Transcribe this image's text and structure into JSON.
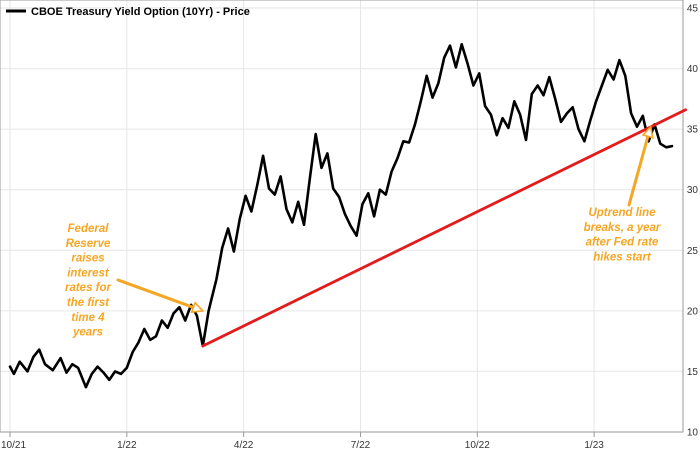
{
  "chart_data": {
    "type": "line",
    "title": "CBOE Treasury Yield Option (10Yr) - Price",
    "legend": {
      "label": "CBOE Treasury Yield Option (10Yr) - Price",
      "placement": "top-left"
    },
    "ylim": [
      10,
      45
    ],
    "yticks": [
      10,
      15,
      20,
      25,
      30,
      35,
      40,
      45
    ],
    "xlim": [
      0,
      17
    ],
    "xticks": [
      {
        "label": "10/21",
        "x": 0
      },
      {
        "label": "1/22",
        "x": 3
      },
      {
        "label": "4/22",
        "x": 6
      },
      {
        "label": "7/22",
        "x": 9
      },
      {
        "label": "10/22",
        "x": 12
      },
      {
        "label": "1/23",
        "x": 15
      }
    ],
    "series": [
      {
        "name": "CBOE Treasury Yield Option (10Yr) - Price",
        "color": "#000000",
        "x": [
          0,
          0.1,
          0.25,
          0.45,
          0.6,
          0.75,
          0.9,
          1.1,
          1.3,
          1.45,
          1.6,
          1.75,
          1.95,
          2.1,
          2.25,
          2.4,
          2.55,
          2.7,
          2.85,
          3.0,
          3.15,
          3.3,
          3.45,
          3.6,
          3.75,
          3.9,
          4.05,
          4.2,
          4.35,
          4.5,
          4.65,
          4.8,
          4.95,
          5.1,
          5.2,
          5.3,
          5.45,
          5.6,
          5.75,
          5.9,
          6.05,
          6.2,
          6.35,
          6.5,
          6.65,
          6.8,
          6.95,
          7.1,
          7.25,
          7.4,
          7.55,
          7.7,
          7.85,
          8.0,
          8.15,
          8.3,
          8.45,
          8.6,
          8.75,
          8.9,
          9.05,
          9.2,
          9.35,
          9.5,
          9.65,
          9.8,
          9.95,
          10.1,
          10.25,
          10.4,
          10.55,
          10.7,
          10.85,
          11.0,
          11.15,
          11.3,
          11.45,
          11.6,
          11.75,
          11.9,
          12.05,
          12.2,
          12.35,
          12.5,
          12.65,
          12.8,
          12.95,
          13.1,
          13.25,
          13.4,
          13.55,
          13.7,
          13.85,
          14.0,
          14.15,
          14.3,
          14.45,
          14.6,
          14.75,
          14.9,
          15.05,
          15.2,
          15.35,
          15.5,
          15.65,
          15.8,
          15.95,
          16.1,
          16.25,
          16.4,
          16.55,
          16.7,
          16.85,
          17.0
        ],
        "values": [
          15.4,
          14.8,
          15.8,
          15.0,
          16.2,
          16.8,
          15.6,
          15.1,
          16.1,
          14.9,
          15.6,
          15.3,
          13.7,
          14.8,
          15.4,
          14.9,
          14.3,
          15.0,
          14.8,
          15.3,
          16.6,
          17.4,
          18.5,
          17.6,
          17.9,
          19.2,
          18.6,
          19.8,
          20.3,
          19.2,
          20.5,
          19.6,
          17.1,
          20.0,
          21.3,
          22.6,
          25.2,
          26.8,
          24.9,
          27.6,
          29.5,
          28.2,
          30.4,
          32.8,
          30.1,
          29.6,
          31.1,
          28.4,
          27.3,
          29.0,
          27.1,
          30.9,
          34.6,
          31.8,
          33.0,
          30.1,
          29.4,
          28.0,
          27.0,
          26.2,
          28.8,
          29.7,
          27.8,
          30.0,
          29.6,
          31.5,
          32.6,
          34.0,
          33.9,
          35.4,
          37.3,
          39.4,
          37.6,
          38.8,
          40.9,
          41.9,
          40.1,
          42.0,
          40.4,
          38.6,
          39.6,
          36.9,
          36.2,
          34.5,
          35.9,
          35.1,
          37.3,
          36.2,
          34.1,
          37.9,
          38.6,
          37.8,
          39.3,
          37.5,
          35.6,
          36.3,
          36.8,
          35.0,
          34.0,
          35.7,
          37.3,
          38.6,
          39.9,
          39.1,
          40.7,
          39.4,
          36.3,
          35.2,
          36.1,
          34.0,
          35.4,
          33.8,
          33.5,
          33.6
        ]
      },
      {
        "name": "Uptrend line",
        "color": "#e31b1b",
        "x": [
          4.95,
          17.35
        ],
        "values": [
          17.1,
          36.6
        ]
      }
    ],
    "annotations": [
      {
        "text": [
          "Federal",
          "Reserve",
          "raises",
          "interest",
          "rates for",
          "the first",
          "time 4",
          "years"
        ],
        "color": "#f5a623",
        "points_to": {
          "x": 4.95,
          "y": 20.0
        }
      },
      {
        "text": [
          "Uptrend line",
          "breaks, a year",
          "after Fed rate",
          "hikes start"
        ],
        "color": "#f5a623",
        "points_to": {
          "x": 16.45,
          "y": 35.2
        }
      }
    ]
  }
}
